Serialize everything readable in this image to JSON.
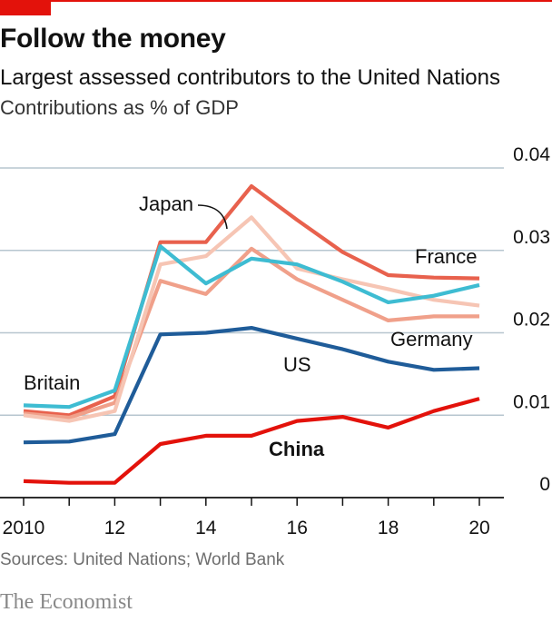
{
  "header": {
    "title": "Follow the money",
    "subtitle": "Largest assessed contributors to the United Nations",
    "unit_label": "Contributions as % of GDP"
  },
  "footer": {
    "source": "Sources: United Nations; World Bank",
    "brand": "The Economist"
  },
  "colors": {
    "accent": "#e3120b",
    "grid": "#b7c6cf",
    "axis": "#121212"
  },
  "chart_data": {
    "type": "line",
    "x": [
      2010,
      2011,
      2012,
      2013,
      2014,
      2015,
      2016,
      2017,
      2018,
      2019,
      2020
    ],
    "x_tick_values": [
      2010,
      2012,
      2014,
      2016,
      2018,
      2020
    ],
    "x_tick_labels": [
      "2010",
      "12",
      "14",
      "16",
      "18",
      "20"
    ],
    "xlim": [
      2010,
      2020
    ],
    "ylim": [
      0,
      0.04
    ],
    "y_ticks": [
      0,
      0.01,
      0.02,
      0.03,
      0.04
    ],
    "y_tick_labels": [
      "0",
      "0.01",
      "0.02",
      "0.03",
      "0.04"
    ],
    "y_axis_side": "right",
    "grid": true,
    "series": [
      {
        "name": "France",
        "color": "#e8614d",
        "bold": false,
        "values": [
          0.0105,
          0.01,
          0.0123,
          0.031,
          0.031,
          0.0378,
          0.0337,
          0.0298,
          0.027,
          0.0267,
          0.0266
        ]
      },
      {
        "name": "Germany",
        "color": "#f0a08a",
        "bold": false,
        "values": [
          0.0102,
          0.0097,
          0.0115,
          0.0263,
          0.0247,
          0.0302,
          0.0265,
          0.024,
          0.0215,
          0.022,
          0.022
        ]
      },
      {
        "name": "Japan",
        "color": "#f6c5b4",
        "bold": false,
        "values": [
          0.01,
          0.0093,
          0.0105,
          0.0283,
          0.0293,
          0.034,
          0.0278,
          0.0265,
          0.0253,
          0.024,
          0.0233
        ]
      },
      {
        "name": "Britain",
        "color": "#3ebcd2",
        "bold": false,
        "values": [
          0.0112,
          0.011,
          0.013,
          0.0305,
          0.026,
          0.029,
          0.0283,
          0.0262,
          0.0237,
          0.0245,
          0.0258
        ]
      },
      {
        "name": "US",
        "color": "#1f5c99",
        "bold": false,
        "values": [
          0.0067,
          0.0068,
          0.0077,
          0.0198,
          0.02,
          0.0206,
          0.0193,
          0.018,
          0.0165,
          0.0155,
          0.0157
        ]
      },
      {
        "name": "China",
        "color": "#e3120b",
        "bold": true,
        "values": [
          0.002,
          0.0018,
          0.0018,
          0.0065,
          0.0075,
          0.0075,
          0.0093,
          0.0098,
          0.0085,
          0.0105,
          0.012
        ]
      }
    ],
    "annotations": [
      "Japan",
      "France",
      "Germany",
      "Britain",
      "US",
      "China"
    ]
  }
}
